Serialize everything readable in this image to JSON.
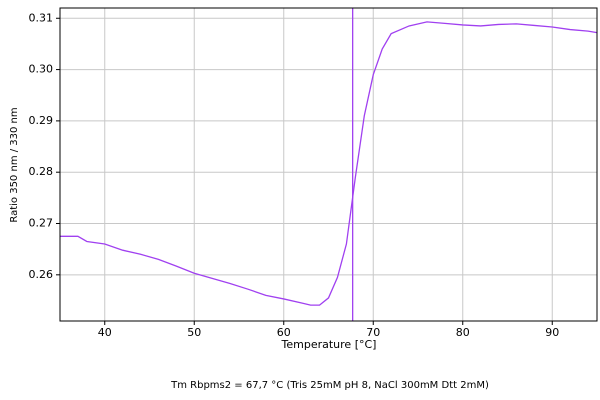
{
  "chart_data": {
    "type": "line",
    "xlabel": "Temperature [°C]",
    "ylabel": "Ratio 350 nm / 330 nm",
    "note": "Tm Rbpms2 = 67,7 °C (Tris 25mM pH 8, NaCl 300mM Dtt 2mM)",
    "x": [
      35,
      37,
      38,
      40,
      42,
      44,
      46,
      48,
      50,
      52,
      54,
      56,
      58,
      60,
      62,
      63,
      64,
      65,
      66,
      67,
      68,
      69,
      70,
      71,
      72,
      74,
      76,
      78,
      80,
      82,
      84,
      86,
      88,
      90,
      92,
      94,
      95
    ],
    "values": [
      0.2675,
      0.2675,
      0.2665,
      0.266,
      0.2648,
      0.264,
      0.263,
      0.2617,
      0.2603,
      0.2593,
      0.2583,
      0.2572,
      0.256,
      0.2553,
      0.2545,
      0.2541,
      0.2541,
      0.2555,
      0.2595,
      0.266,
      0.279,
      0.291,
      0.299,
      0.304,
      0.307,
      0.3085,
      0.3093,
      0.309,
      0.3087,
      0.3085,
      0.3088,
      0.3089,
      0.3086,
      0.3083,
      0.3078,
      0.3075,
      0.3072
    ],
    "color": "#a040f0",
    "vline": 67.7,
    "xlim": [
      35,
      95
    ],
    "ylim": [
      0.251,
      0.312
    ],
    "xticks": [
      40,
      50,
      60,
      70,
      80,
      90
    ],
    "yticks": [
      0.26,
      0.27,
      0.28,
      0.29,
      {
        "value": 0.3,
        "label": "0.30"
      },
      0.31
    ],
    "grid": true
  }
}
